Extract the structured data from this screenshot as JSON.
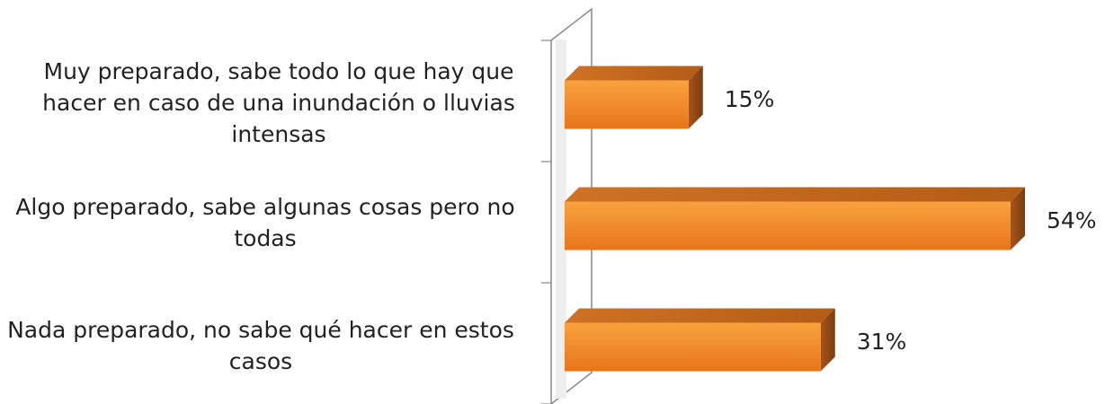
{
  "chart_data": {
    "type": "bar",
    "orientation": "horizontal",
    "style": "3d",
    "categories": [
      "Muy preparado, sabe todo lo que hay que hacer en caso de una inundación o lluvias intensas",
      "Algo preparado, sabe algunas cosas pero no todas",
      "Nada preparado, no sabe qué hacer en estos casos"
    ],
    "values": [
      15,
      54,
      31
    ],
    "value_labels": [
      "15%",
      "54%",
      "31%"
    ],
    "value_unit": "%",
    "xlim": [
      0,
      54
    ],
    "grid": false,
    "legend": "none",
    "colors": {
      "bar_front_top": "#f9a23d",
      "bar_front_bottom": "#e8751a",
      "bar_top_face": "#c4661c",
      "bar_side_face": "#8f4812",
      "wall": "#888888",
      "text": "#222222"
    }
  }
}
